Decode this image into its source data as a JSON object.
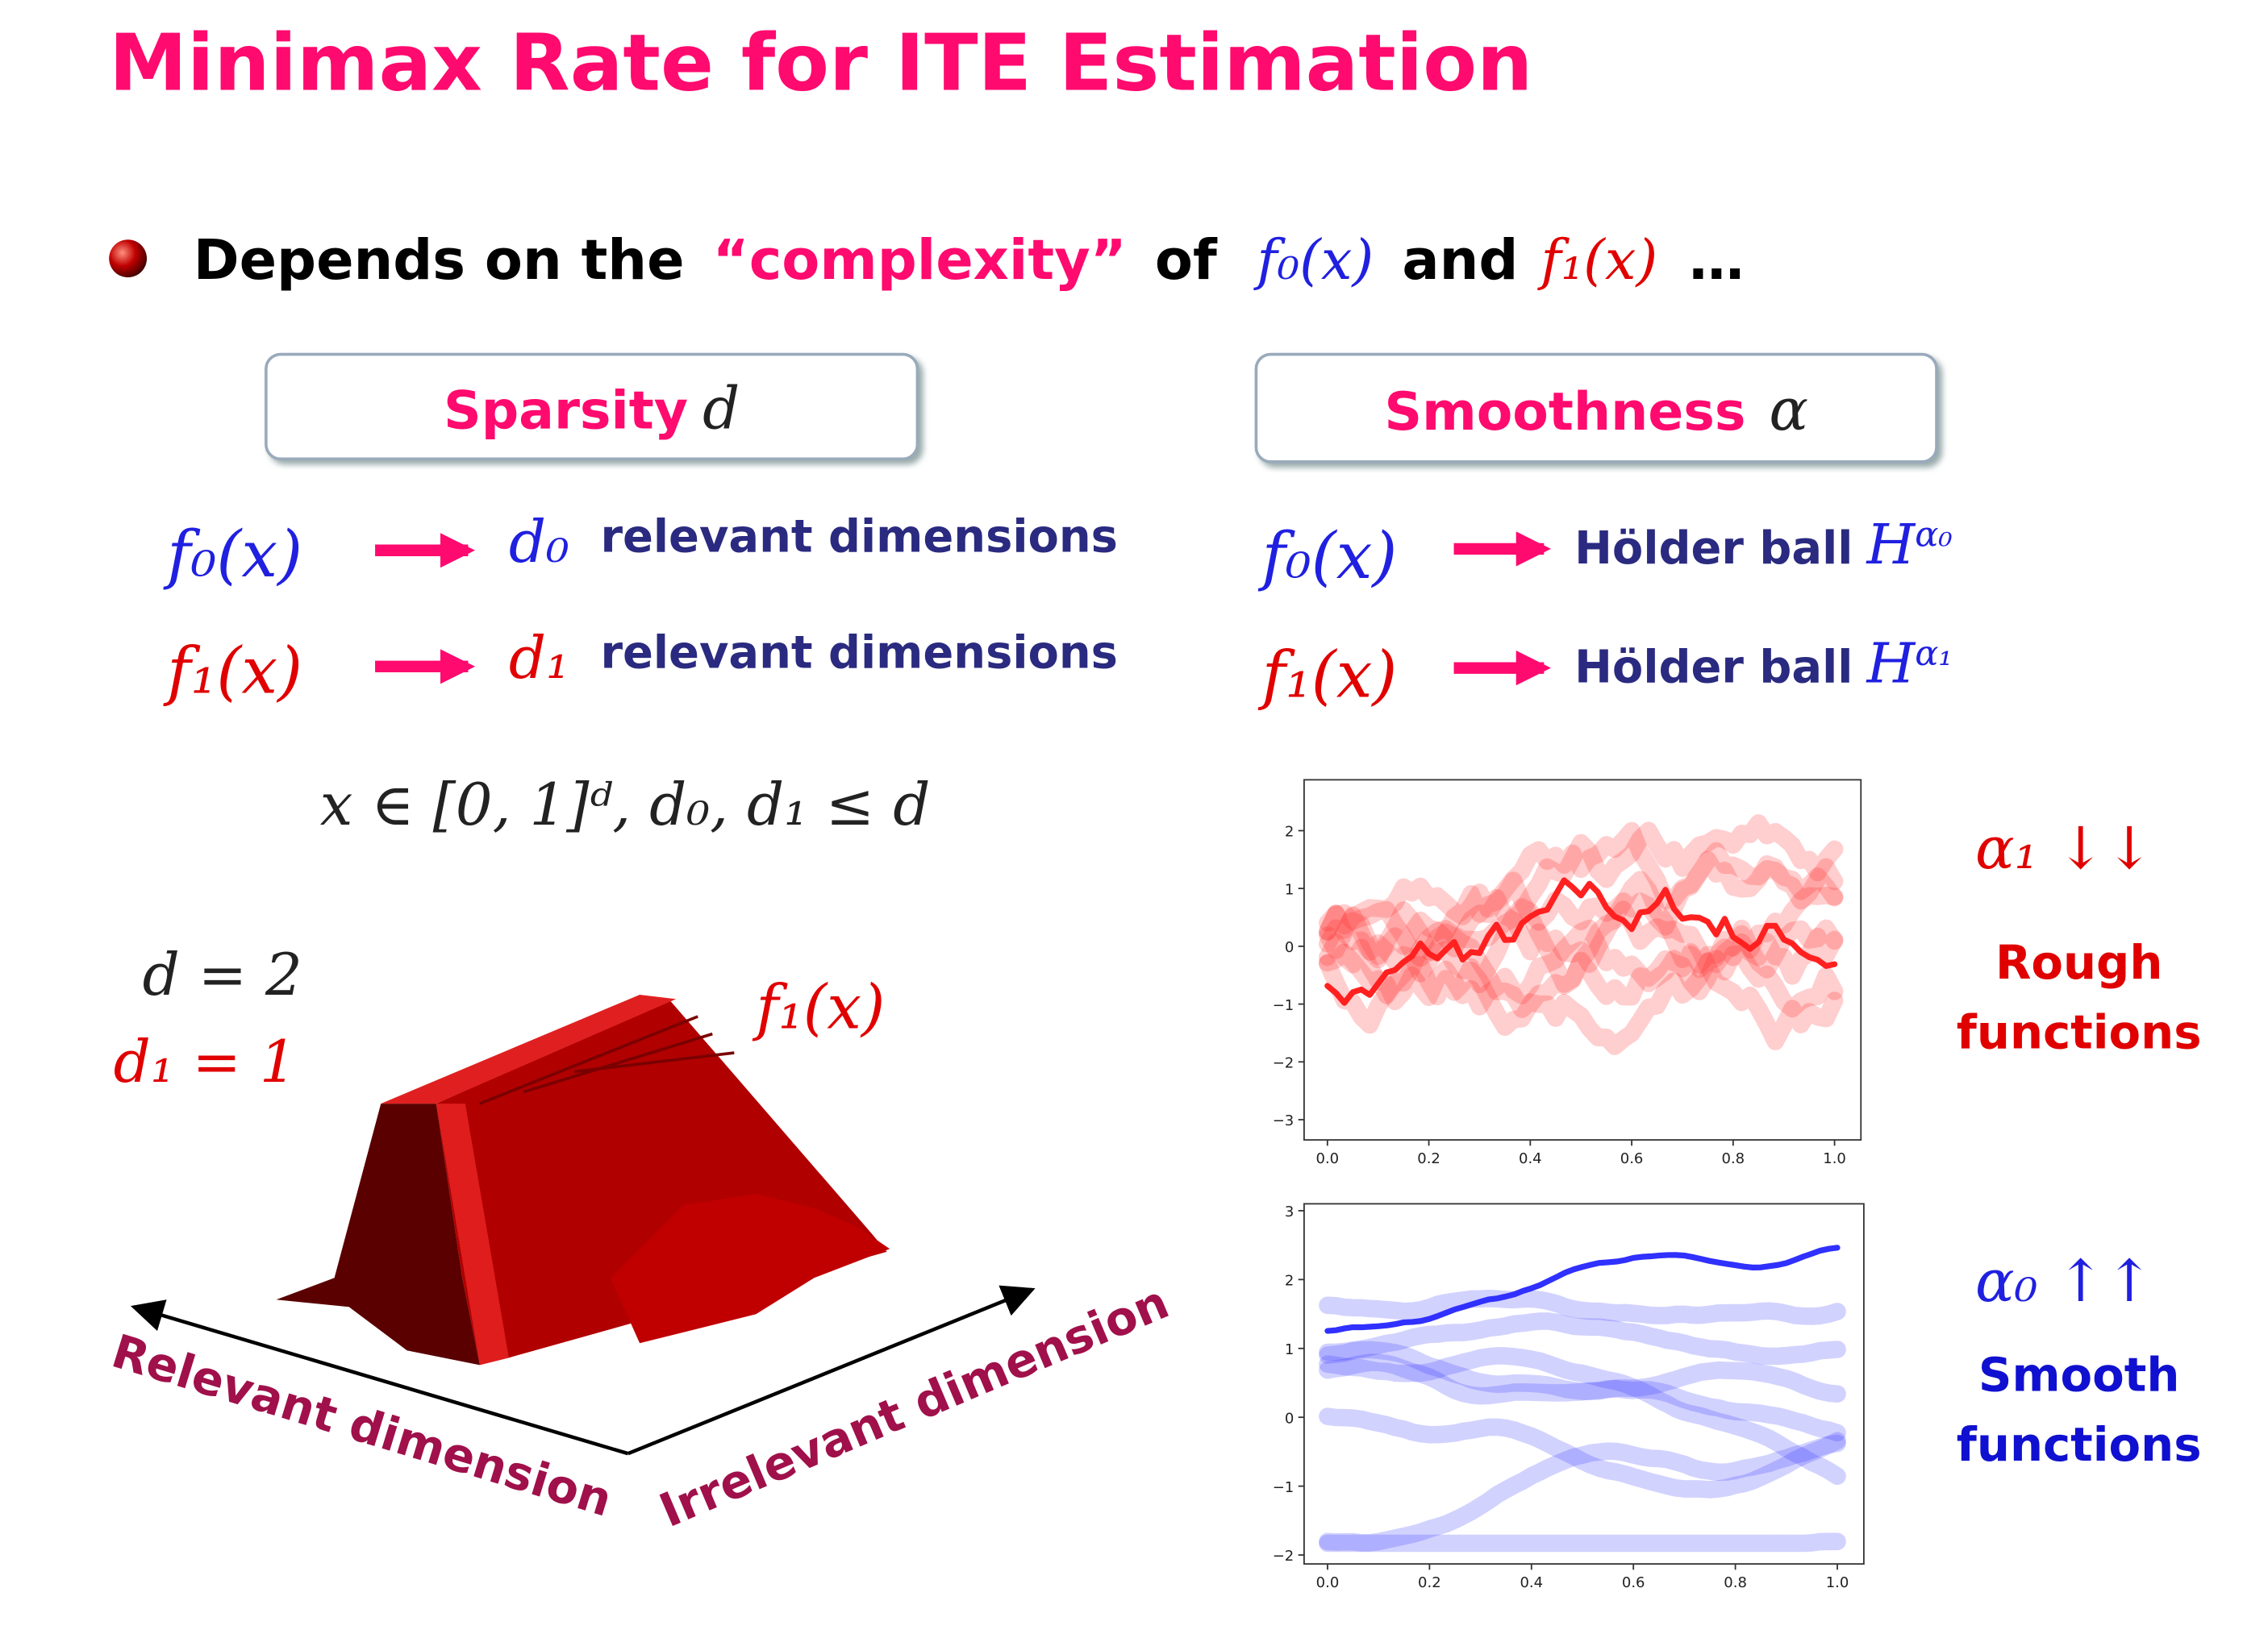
{
  "title": "Minimax Rate for ITE Estimation",
  "bullet": {
    "lead": "Depends on the",
    "emph": "“complexity”",
    "of": "of",
    "f0": "f₀(x)",
    "and": "and",
    "f1": "f₁(x)",
    "tail": "…"
  },
  "sparsity": {
    "label": "Sparsity",
    "symbol": "d",
    "rows": [
      {
        "func": "f₀(x)",
        "dim": "d₀",
        "text": "relevant dimensions"
      },
      {
        "func": "f₁(x)",
        "dim": "d₁",
        "text": "relevant dimensions"
      }
    ],
    "formula": "x ∈ [0, 1]ᵈ, d₀, d₁ ≤ d",
    "d_eq": "d = 2",
    "d1_eq": "d₁ = 1",
    "surface_label": "f₁(x)",
    "axis_relevant": "Relevant dimension",
    "axis_irrelevant": "Irrelevant dimension"
  },
  "smoothness": {
    "label": "Smoothness",
    "symbol": "α",
    "rows": [
      {
        "func": "f₀(x)",
        "text": "Hölder ball",
        "ball": "H",
        "exp": "α₀"
      },
      {
        "func": "f₁(x)",
        "text": "Hölder ball",
        "ball": "H",
        "exp": "α₁"
      }
    ],
    "rough": {
      "symbol": "α₁ ↓↓",
      "line1": "Rough",
      "line2": "functions"
    },
    "smooth": {
      "symbol": "α₀ ↑↑",
      "line1": "Smooth",
      "line2": "functions"
    }
  },
  "plots": [
    {
      "color": "#ff2020",
      "xlim": [
        -0.046,
        1.052
      ],
      "ylim": [
        -3.35,
        2.88
      ],
      "xticks": [
        {
          "value": 0,
          "label": "0.0"
        },
        0.2,
        0.4,
        0.6,
        0.8,
        {
          "value": 1,
          "label": "1.0"
        }
      ],
      "yticks": [
        {
          "value": -3,
          "label": "−3"
        },
        {
          "value": -2,
          "label": "−2"
        },
        {
          "value": -1,
          "label": "−1"
        },
        0,
        1,
        2
      ]
    },
    {
      "color": "#3030ff",
      "xlim": [
        -0.046,
        1.052
      ],
      "ylim": [
        -2.13,
        3.1
      ],
      "xticks": [
        {
          "value": 0,
          "label": "0.0"
        },
        0.2,
        0.4,
        0.6,
        0.8,
        {
          "value": 1,
          "label": "1.0"
        }
      ],
      "yticks": [
        {
          "value": -2,
          "label": "−2"
        },
        {
          "value": -1,
          "label": "−1"
        },
        0,
        1,
        2,
        3
      ]
    }
  ]
}
